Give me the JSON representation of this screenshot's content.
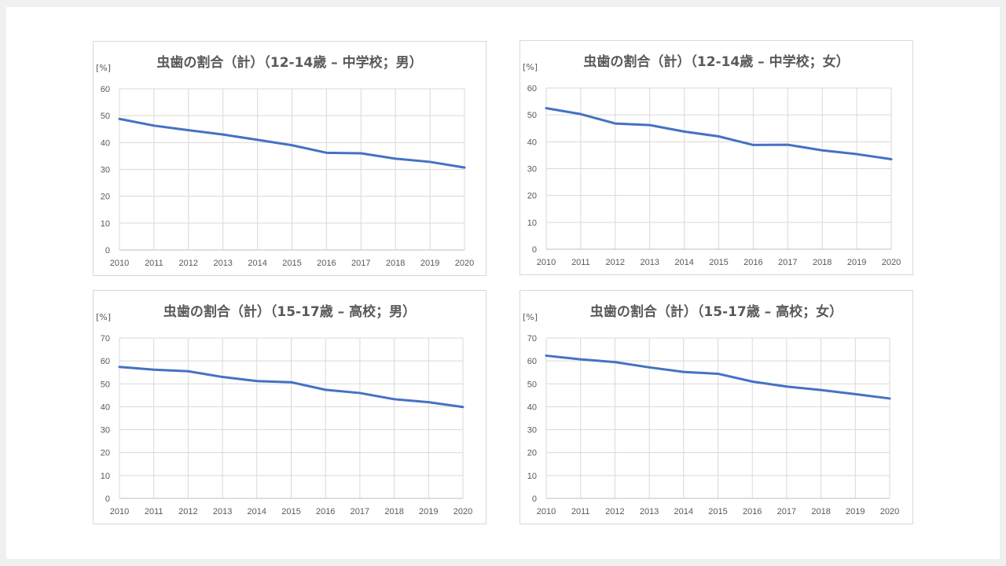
{
  "colors": {
    "line": "#4472c4",
    "grid": "#d9d9d9",
    "text": "#595959"
  },
  "chart_data": [
    {
      "type": "line",
      "title": "虫歯の割合（計）（12-14歳 – 中学校；男）",
      "unit": "[%]",
      "x": [
        "2010",
        "2011",
        "2012",
        "2013",
        "2014",
        "2015",
        "2016",
        "2017",
        "2018",
        "2019",
        "2020"
      ],
      "series": [
        {
          "values": [
            48.8,
            46.3,
            44.6,
            43.0,
            41.0,
            39.0,
            36.2,
            36.0,
            34.0,
            32.8,
            30.7
          ]
        }
      ],
      "ylim": [
        0,
        60
      ],
      "yticks": [
        0,
        10,
        20,
        30,
        40,
        50,
        60
      ],
      "grid": true
    },
    {
      "type": "line",
      "title": "虫歯の割合（計）（12-14歳 – 中学校；女）",
      "unit": "[%]",
      "x": [
        "2010",
        "2011",
        "2012",
        "2013",
        "2014",
        "2015",
        "2016",
        "2017",
        "2018",
        "2019",
        "2020"
      ],
      "series": [
        {
          "values": [
            52.5,
            50.3,
            46.8,
            46.2,
            43.8,
            42.0,
            38.8,
            38.9,
            36.8,
            35.4,
            33.5
          ]
        }
      ],
      "ylim": [
        0,
        60
      ],
      "yticks": [
        0,
        10,
        20,
        30,
        40,
        50,
        60
      ],
      "grid": true
    },
    {
      "type": "line",
      "title": "虫歯の割合（計）（15-17歳 – 高校；男）",
      "unit": "[%]",
      "x": [
        "2010",
        "2011",
        "2012",
        "2013",
        "2014",
        "2015",
        "2016",
        "2017",
        "2018",
        "2019",
        "2020"
      ],
      "series": [
        {
          "values": [
            57.4,
            56.2,
            55.5,
            53.0,
            51.2,
            50.7,
            47.4,
            46.0,
            43.3,
            42.0,
            39.9
          ]
        }
      ],
      "ylim": [
        0,
        70
      ],
      "yticks": [
        0,
        10,
        20,
        30,
        40,
        50,
        60,
        70
      ],
      "grid": true
    },
    {
      "type": "line",
      "title": "虫歯の割合（計）（15-17歳 – 高校；女）",
      "unit": "[%]",
      "x": [
        "2010",
        "2011",
        "2012",
        "2013",
        "2014",
        "2015",
        "2016",
        "2017",
        "2018",
        "2019",
        "2020"
      ],
      "series": [
        {
          "values": [
            62.3,
            60.7,
            59.5,
            57.2,
            55.2,
            54.4,
            51.0,
            48.8,
            47.3,
            45.5,
            43.6
          ]
        }
      ],
      "ylim": [
        0,
        70
      ],
      "yticks": [
        0,
        10,
        20,
        30,
        40,
        50,
        60,
        70
      ],
      "grid": true
    }
  ]
}
